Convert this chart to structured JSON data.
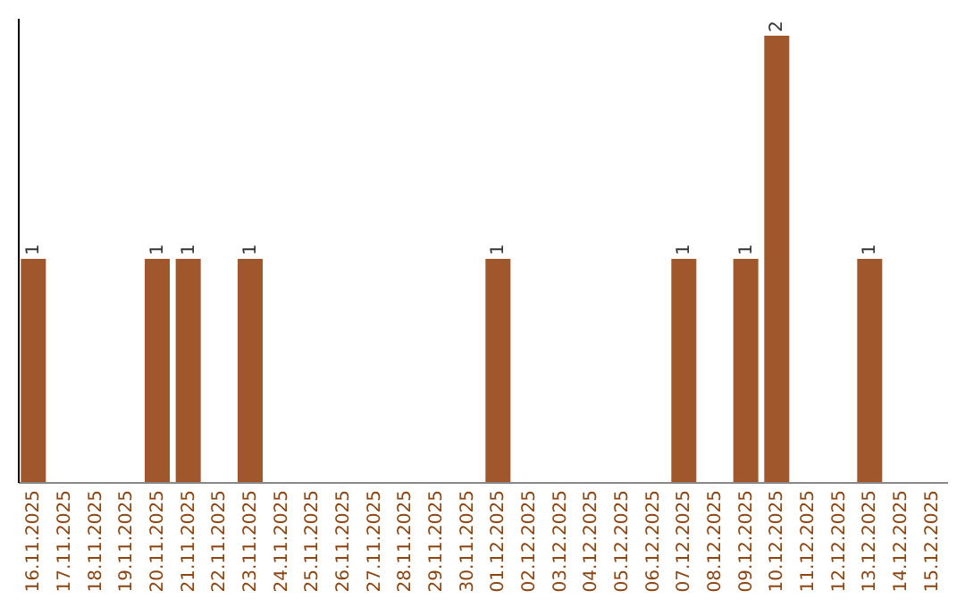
{
  "chart_data": {
    "type": "bar",
    "categories": [
      "16.11.2025",
      "17.11.2025",
      "18.11.2025",
      "19.11.2025",
      "20.11.2025",
      "21.11.2025",
      "22.11.2025",
      "23.11.2025",
      "24.11.2025",
      "25.11.2025",
      "26.11.2025",
      "27.11.2025",
      "28.11.2025",
      "29.11.2025",
      "30.11.2025",
      "01.12.2025",
      "02.12.2025",
      "03.12.2025",
      "04.12.2025",
      "05.12.2025",
      "06.12.2025",
      "07.12.2025",
      "08.12.2025",
      "09.12.2025",
      "10.12.2025",
      "11.12.2025",
      "12.12.2025",
      "13.12.2025",
      "14.12.2025",
      "15.12.2025"
    ],
    "values": [
      1,
      0,
      0,
      0,
      1,
      1,
      0,
      1,
      0,
      0,
      0,
      0,
      0,
      0,
      0,
      1,
      0,
      0,
      0,
      0,
      0,
      1,
      0,
      1,
      2,
      0,
      0,
      1,
      0,
      0
    ],
    "value_labels": [
      "1",
      null,
      null,
      null,
      "1",
      "1",
      null,
      "1",
      null,
      null,
      null,
      null,
      null,
      null,
      null,
      "1",
      null,
      null,
      null,
      null,
      null,
      "1",
      null,
      "1",
      "2",
      null,
      null,
      "1",
      null,
      null
    ],
    "color": "#a0572c",
    "ylim": [
      0,
      2.08
    ],
    "tick_labels": "x",
    "grid": false
  }
}
